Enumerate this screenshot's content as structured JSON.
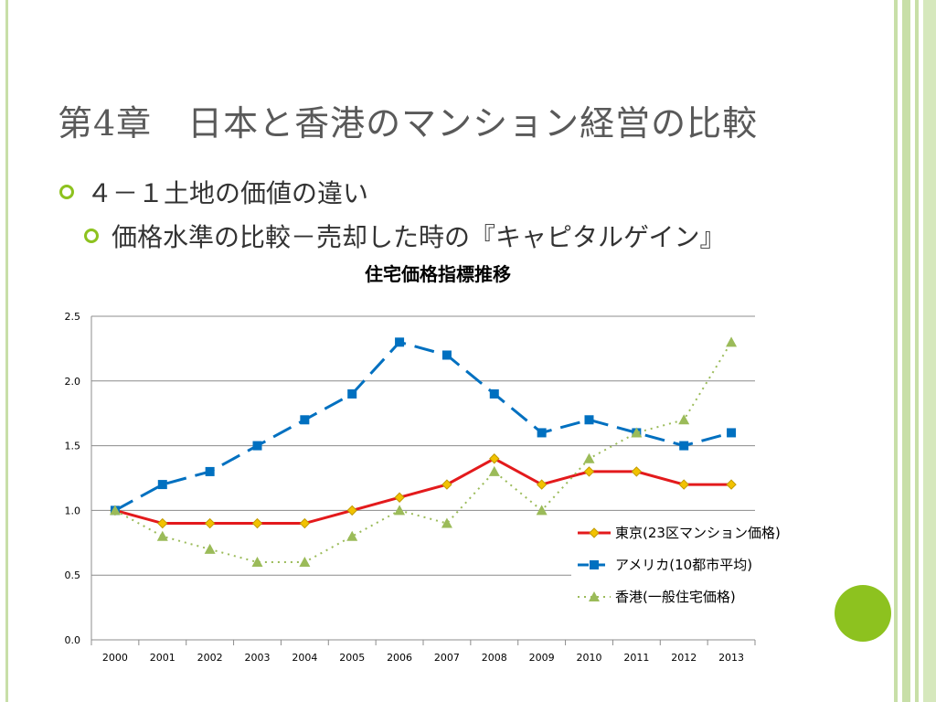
{
  "slide": {
    "title": "第4章　日本と香港のマンション経営の比較",
    "bullets": [
      {
        "text": "４－１土地の価値の違い"
      },
      {
        "text": "価格水準の比較－売却した時の『キャピタルゲイン』"
      }
    ]
  },
  "colors": {
    "accent": "#8dc21f",
    "frame": "#c8dfa8",
    "text": "#595959"
  },
  "chart_data": {
    "type": "line",
    "title": "住宅価格指標推移",
    "xlabel": "",
    "ylabel": "",
    "categories": [
      "2000",
      "2001",
      "2002",
      "2003",
      "2004",
      "2005",
      "2006",
      "2007",
      "2008",
      "2009",
      "2010",
      "2011",
      "2012",
      "2013"
    ],
    "ylim": [
      0,
      2.5
    ],
    "yticks": [
      "0.0",
      "0.5",
      "1.0",
      "1.5",
      "2.0",
      "2.5"
    ],
    "grid": true,
    "legend": "bottom-right",
    "series": [
      {
        "name": "東京(23区マンション価格)",
        "color": "#e31a1c",
        "marker": "diamond",
        "style": "solid",
        "values": [
          1.0,
          0.9,
          0.9,
          0.9,
          0.9,
          1.0,
          1.1,
          1.2,
          1.4,
          1.2,
          1.3,
          1.3,
          1.2,
          1.2
        ]
      },
      {
        "name": "アメリカ(10都市平均)",
        "color": "#0070c0",
        "marker": "square",
        "style": "dashed",
        "values": [
          1.0,
          1.2,
          1.3,
          1.5,
          1.7,
          1.9,
          2.3,
          2.2,
          1.9,
          1.6,
          1.7,
          1.6,
          1.5,
          1.6
        ]
      },
      {
        "name": "香港(一般住宅価格)",
        "color": "#9bbb59",
        "marker": "triangle",
        "style": "dotted",
        "values": [
          1.0,
          0.8,
          0.7,
          0.6,
          0.6,
          0.8,
          1.0,
          0.9,
          1.3,
          1.0,
          1.4,
          1.6,
          1.7,
          2.3
        ]
      }
    ]
  }
}
